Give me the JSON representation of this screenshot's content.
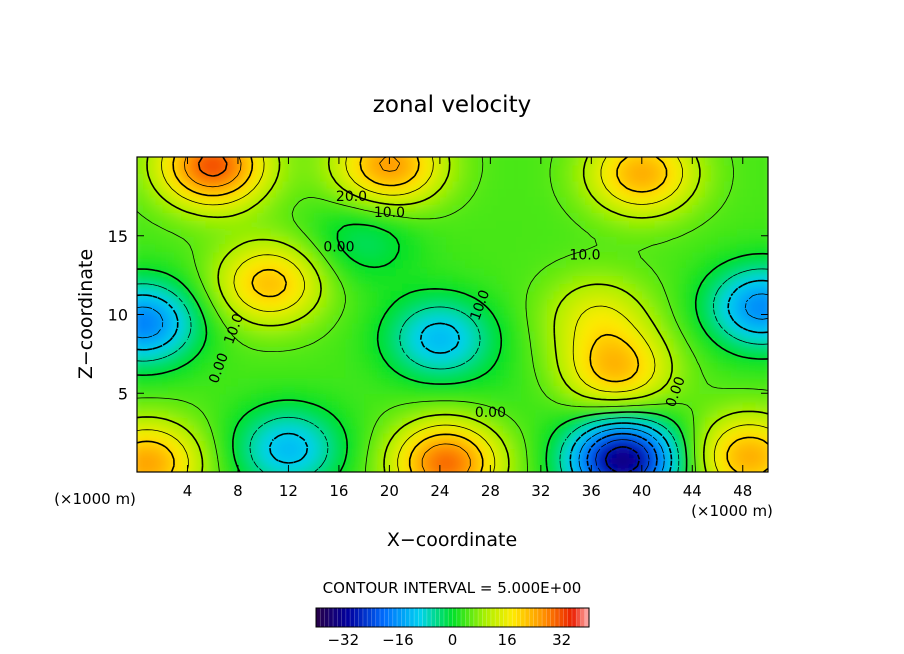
{
  "chart_data": {
    "type": "heatmap",
    "title": "zonal velocity",
    "xlabel": "X−coordinate",
    "ylabel": "Z−coordinate",
    "x_unit_left": "(×1000 m)",
    "x_unit_right": "(×1000 m)",
    "xlim": [
      0,
      50
    ],
    "ylim": [
      0,
      20
    ],
    "xticks": [
      "4",
      "8",
      "12",
      "16",
      "20",
      "24",
      "28",
      "32",
      "36",
      "40",
      "44",
      "48"
    ],
    "yticks": [
      "5",
      "10",
      "15"
    ],
    "contour_interval_text": "CONTOUR INTERVAL = 5.000E+00",
    "contour_labels": [
      "20.0",
      "10.0",
      "0.00",
      "10.0",
      "10.0",
      "10.0",
      "0.00",
      "0.00",
      "0.00"
    ],
    "colorbar": {
      "range": [
        -40,
        40
      ],
      "ticks": [
        "−32",
        "−16",
        "0",
        "16",
        "32"
      ]
    },
    "features": [
      {
        "x": 10.5,
        "z": 12.0,
        "u": 22
      },
      {
        "x": 38.0,
        "z": 6.5,
        "u": 22
      },
      {
        "x": 36.5,
        "z": 10.0,
        "u": 14
      },
      {
        "x": 0.5,
        "z": 9.5,
        "u": -18
      },
      {
        "x": 49.5,
        "z": 10.5,
        "u": -17
      },
      {
        "x": 24.0,
        "z": 8.5,
        "u": -12
      },
      {
        "x": 38.5,
        "z": 0.8,
        "u": -34
      },
      {
        "x": 12.0,
        "z": 1.5,
        "u": -12
      },
      {
        "x": 24.5,
        "z": 0.6,
        "u": 30
      },
      {
        "x": 0.8,
        "z": 0.6,
        "u": 25
      },
      {
        "x": 48.5,
        "z": 1.0,
        "u": 24
      },
      {
        "x": 6.0,
        "z": 19.5,
        "u": 32
      },
      {
        "x": 40.0,
        "z": 19.0,
        "u": 24
      },
      {
        "x": 20.0,
        "z": 19.5,
        "u": 26
      },
      {
        "x": 18.0,
        "z": 14.8,
        "u": -3
      },
      {
        "x": 4.5,
        "z": 4.0,
        "u": 4
      },
      {
        "x": 30.0,
        "z": 5.0,
        "u": 3
      }
    ]
  }
}
